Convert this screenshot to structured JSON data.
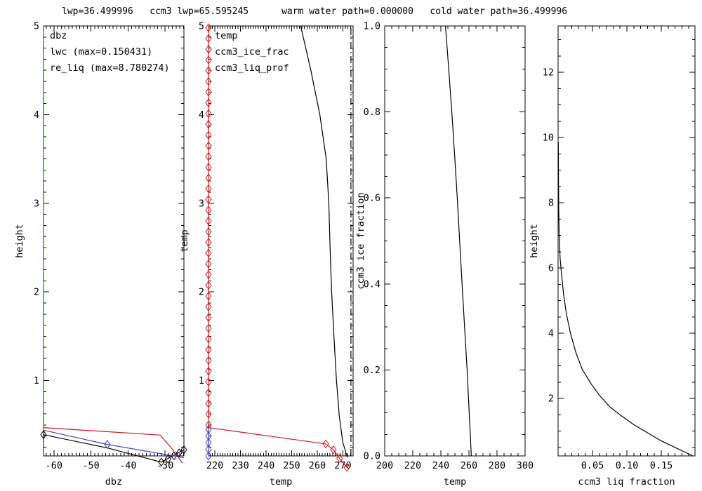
{
  "title": "lwp=36.499996   ccm3 lwp=65.595245      warm water path=0.000000   cold water path=36.499996",
  "colors": {
    "black": "#000000",
    "red": "#cc1b1b",
    "blue": "#4040c0",
    "background": "#ffffff"
  },
  "chart_data": [
    {
      "id": "dbz-profile",
      "type": "line",
      "xlabel": "dbz",
      "ylabel": "height",
      "xlim": [
        -62.8,
        -24.9
      ],
      "ylim": [
        0.15,
        5
      ],
      "xticks": {
        "values": [
          -60,
          -50,
          -40,
          -30
        ],
        "labels": [
          "-60",
          "-50",
          "-40",
          "-30"
        ],
        "minor_step": 1
      },
      "yticks": {
        "values": [
          1,
          2,
          3,
          4,
          5
        ],
        "labels": [
          "1",
          "2",
          "3",
          "4",
          "5"
        ],
        "minor_step": 0.125
      },
      "legend": [
        {
          "label": "dbz",
          "color_key": "black"
        },
        {
          "label": "lwc (max=0.150431)",
          "color_key": "red"
        },
        {
          "label": "re_liq (max=8.780274)",
          "color_key": "blue"
        }
      ],
      "series": [
        {
          "name": "dbz",
          "color_key": "black",
          "marker": "open-diamond",
          "points": [
            [
              -62.8,
              0.39
            ],
            [
              -45.6,
              0.24
            ],
            [
              -31,
              0.08
            ],
            [
              -24.9,
              0.22
            ]
          ],
          "markers": [
            [
              -62.8,
              0.39
            ],
            [
              -31,
              0.08
            ],
            [
              -29.2,
              0.115
            ],
            [
              -27.6,
              0.15
            ],
            [
              -26.2,
              0.185
            ],
            [
              -24.9,
              0.22
            ]
          ]
        },
        {
          "name": "lwc",
          "color_key": "red",
          "points": [
            [
              -62.8,
              0.47
            ],
            [
              -31.3,
              0.385
            ],
            [
              -28.1,
              0.23
            ],
            [
              -25.3,
              0.07
            ]
          ]
        },
        {
          "name": "re_liq",
          "color_key": "blue",
          "marker": "open-diamond",
          "points": [
            [
              -62.8,
              5
            ],
            [
              -62.8,
              0.44
            ],
            [
              -45.6,
              0.28
            ],
            [
              -24.9,
              0.13
            ]
          ],
          "markers": [
            [
              -45.6,
              0.28
            ]
          ]
        }
      ]
    },
    {
      "id": "temp-profile",
      "type": "line",
      "xlabel": "temp",
      "ylabel": "temp",
      "xlim": [
        217.5,
        274
      ],
      "ylim": [
        0.15,
        5
      ],
      "xticks": {
        "values": [
          220,
          230,
          240,
          250,
          260,
          270
        ],
        "labels": [
          "220",
          "230",
          "240",
          "250",
          "260",
          "270"
        ],
        "minor_step": 1
      },
      "yticks": {
        "values": [
          1,
          2,
          3,
          4,
          5
        ],
        "labels": [
          "1",
          "2",
          "3",
          "4",
          "5"
        ],
        "minor_step": 0.125
      },
      "legend": [
        {
          "label": "temp",
          "color_key": "black"
        },
        {
          "label": "ccm3_ice_frac",
          "color_key": "blue"
        },
        {
          "label": "ccm3_liq_prof",
          "color_key": "red"
        }
      ],
      "series": [
        {
          "name": "temp",
          "color_key": "black",
          "points": [
            [
              253.5,
              5
            ],
            [
              257.5,
              4.5
            ],
            [
              261,
              4
            ],
            [
              263.5,
              3.5
            ],
            [
              264.5,
              3
            ],
            [
              265,
              2.5
            ],
            [
              265.6,
              2
            ],
            [
              266.5,
              1.5
            ],
            [
              267.5,
              1
            ],
            [
              268.6,
              0.6
            ],
            [
              270,
              0.3
            ],
            [
              271.8,
              0.13
            ]
          ]
        },
        {
          "name": "ccm3_ice_frac",
          "color_key": "blue",
          "marker": "open-diamond",
          "points": [
            [
              217.5,
              0.45
            ],
            [
              217.5,
              0.15
            ]
          ],
          "markers": [
            [
              217.5,
              0.45
            ],
            [
              217.5,
              0.375
            ],
            [
              217.5,
              0.3
            ],
            [
              217.5,
              0.225
            ],
            [
              217.5,
              0.15
            ]
          ]
        },
        {
          "name": "ccm3_liq_prof",
          "color_key": "red",
          "marker": "open-diamond",
          "points": [
            [
              217.5,
              5
            ],
            [
              217.5,
              0.47
            ],
            [
              263.3,
              0.285
            ],
            [
              266.3,
              0.22
            ],
            [
              268.7,
              0.12
            ],
            [
              271.6,
              0.02
            ]
          ],
          "markers": [
            [
              263.3,
              0.285
            ],
            [
              266.3,
              0.22
            ],
            [
              268.7,
              0.12
            ],
            [
              271.6,
              0.02
            ]
          ],
          "axis_markers": {
            "x": 217.5,
            "from": 0.5,
            "to": 4.98,
            "count": 38
          }
        },
        {
          "name": "freezing-level-line",
          "color_key": "black",
          "dash": "10 4 2 4",
          "points": [
            [
              273.15,
              0.15
            ],
            [
              273.15,
              5
            ]
          ]
        }
      ]
    },
    {
      "id": "ccm3-ice-fraction",
      "type": "line",
      "xlabel": "temp",
      "ylabel": "ccm3 ice fraction",
      "xlim": [
        200,
        300
      ],
      "ylim": [
        0,
        1
      ],
      "xticks": {
        "values": [
          200,
          220,
          240,
          260,
          280,
          300
        ],
        "labels": [
          "200",
          "220",
          "240",
          "260",
          "280",
          "300"
        ],
        "minor_step": 5
      },
      "yticks": {
        "values": [
          0,
          0.2,
          0.4,
          0.6,
          0.8,
          1
        ],
        "labels": [
          "0.0",
          "0.2",
          "0.4",
          "0.6",
          "0.8",
          "1.0"
        ],
        "minor_step": 0.05
      },
      "legend": [],
      "series": [
        {
          "name": "ice-fraction-vs-temp",
          "color_key": "black",
          "points": [
            [
              243.3,
              1
            ],
            [
              245.6,
              0.9
            ],
            [
              247.8,
              0.8
            ],
            [
              249.8,
              0.7
            ],
            [
              251.7,
              0.6
            ],
            [
              253.4,
              0.5
            ],
            [
              255.1,
              0.4
            ],
            [
              256.9,
              0.3
            ],
            [
              258.7,
              0.2
            ],
            [
              260.2,
              0.1
            ],
            [
              261.7,
              0
            ]
          ]
        }
      ]
    },
    {
      "id": "ccm3-liq-fraction",
      "type": "line",
      "xlabel": "ccm3 liq fraction",
      "ylabel": "height",
      "xlim": [
        0,
        0.199
      ],
      "ylim": [
        0.24,
        13.42
      ],
      "xticks": {
        "values": [
          0.05,
          0.1,
          0.15
        ],
        "labels": [
          "0.05",
          "0.10",
          "0.15"
        ],
        "minor_step": 0.01
      },
      "yticks": {
        "values": [
          2,
          4,
          6,
          8,
          10,
          12
        ],
        "labels": [
          "2",
          "4",
          "6",
          "8",
          "10",
          "12"
        ],
        "minor_step": 0.5
      },
      "legend": [],
      "series": [
        {
          "name": "liq-fraction-profile",
          "color_key": "black",
          "points": [
            [
              0.0003,
              9.85
            ],
            [
              0.0005,
              9
            ],
            [
              0.0008,
              8
            ],
            [
              0.0015,
              7
            ],
            [
              0.003,
              6.3
            ],
            [
              0.005,
              5.8
            ],
            [
              0.008,
              5.2
            ],
            [
              0.012,
              4.6
            ],
            [
              0.018,
              4
            ],
            [
              0.026,
              3.4
            ],
            [
              0.035,
              2.9
            ],
            [
              0.048,
              2.45
            ],
            [
              0.06,
              2.1
            ],
            [
              0.075,
              1.75
            ],
            [
              0.09,
              1.5
            ],
            [
              0.11,
              1.2
            ],
            [
              0.13,
              0.95
            ],
            [
              0.15,
              0.7
            ],
            [
              0.17,
              0.5
            ],
            [
              0.195,
              0.25
            ]
          ]
        }
      ]
    }
  ]
}
